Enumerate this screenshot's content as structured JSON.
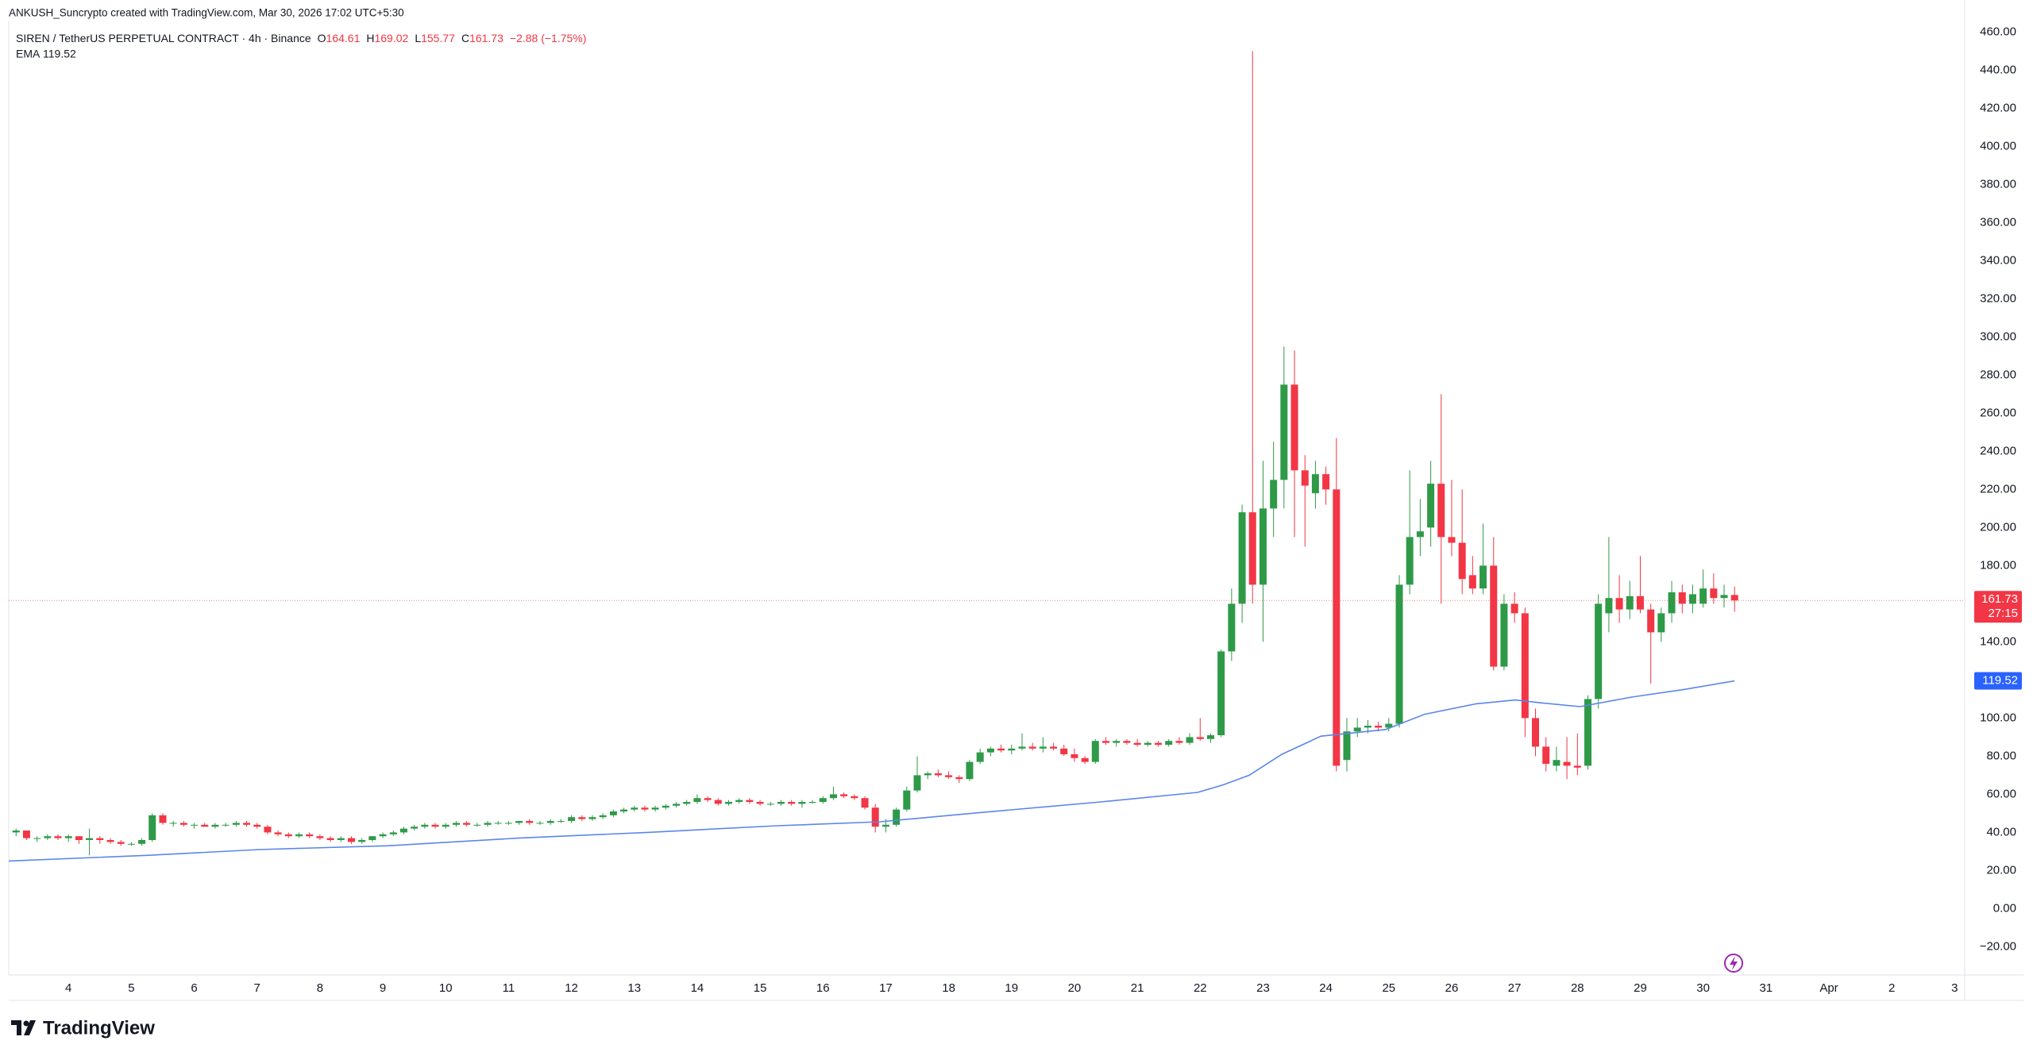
{
  "chart_data": {
    "type": "candlestick",
    "header": "ANKUSH_Suncrypto created with TradingView.com, Mar 30, 2026 17:02 UTC+5:30",
    "symbol": "SIREN / TetherUS PERPETUAL CONTRACT · 4h · Binance",
    "legend_keys": [
      "O",
      "H",
      "L",
      "C"
    ],
    "change": "−2.88 (−1.75%)",
    "countdown": "27:15",
    "logo_text": "TradingView",
    "up_color": "#2e9a48",
    "down_color": "#f23645",
    "grid": false,
    "xlim": [
      3.05,
      34.16
    ],
    "ylim": [
      -34,
      466
    ],
    "xticks": [
      4,
      5,
      6,
      7,
      8,
      9,
      10,
      11,
      12,
      13,
      14,
      15,
      16,
      17,
      18,
      19,
      20,
      21,
      22,
      23,
      24,
      25,
      26,
      27,
      28,
      29,
      30,
      31,
      {
        "value": 32,
        "label": "Apr"
      },
      {
        "value": 33,
        "label": "2"
      },
      {
        "value": 34,
        "label": "3"
      }
    ],
    "yticks": [
      {
        "value": -20,
        "label": "−20.00"
      },
      {
        "value": 0,
        "label": "0.00"
      },
      {
        "value": 20,
        "label": "20.00"
      },
      {
        "value": 40,
        "label": "40.00"
      },
      {
        "value": 60,
        "label": "60.00"
      },
      {
        "value": 80,
        "label": "80.00"
      },
      {
        "value": 100,
        "label": "100.00"
      },
      {
        "value": 120,
        "label": "120.00"
      },
      {
        "value": 140,
        "label": "140.00"
      },
      {
        "value": 160,
        "label": "160.00"
      },
      {
        "value": 180,
        "label": "180.00"
      },
      {
        "value": 200,
        "label": "200.00"
      },
      {
        "value": 220,
        "label": "220.00"
      },
      {
        "value": 240,
        "label": "240.00"
      },
      {
        "value": 260,
        "label": "260.00"
      },
      {
        "value": 280,
        "label": "280.00"
      },
      {
        "value": 300,
        "label": "300.00"
      },
      {
        "value": 320,
        "label": "320.00"
      },
      {
        "value": 340,
        "label": "340.00"
      },
      {
        "value": 360,
        "label": "360.00"
      },
      {
        "value": 380,
        "label": "380.00"
      },
      {
        "value": 400,
        "label": "400.00"
      },
      {
        "value": 420,
        "label": "420.00"
      },
      {
        "value": 440,
        "label": "440.00"
      },
      {
        "value": 460,
        "label": "460.00"
      }
    ],
    "x": [
      3.167,
      3.333,
      3.5,
      3.667,
      3.833,
      4,
      4.167,
      4.333,
      4.5,
      4.667,
      4.833,
      5,
      5.167,
      5.333,
      5.5,
      5.667,
      5.833,
      6,
      6.167,
      6.333,
      6.5,
      6.667,
      6.833,
      7,
      7.167,
      7.333,
      7.5,
      7.667,
      7.833,
      8,
      8.167,
      8.333,
      8.5,
      8.667,
      8.833,
      9,
      9.167,
      9.333,
      9.5,
      9.667,
      9.833,
      10,
      10.167,
      10.333,
      10.5,
      10.667,
      10.833,
      11,
      11.167,
      11.333,
      11.5,
      11.667,
      11.833,
      12,
      12.167,
      12.333,
      12.5,
      12.667,
      12.833,
      13,
      13.167,
      13.333,
      13.5,
      13.667,
      13.833,
      14,
      14.167,
      14.333,
      14.5,
      14.667,
      14.833,
      15,
      15.167,
      15.333,
      15.5,
      15.667,
      15.833,
      16,
      16.167,
      16.333,
      16.5,
      16.667,
      16.833,
      17,
      17.167,
      17.333,
      17.5,
      17.667,
      17.833,
      18,
      18.167,
      18.333,
      18.5,
      18.667,
      18.833,
      19,
      19.167,
      19.333,
      19.5,
      19.667,
      19.833,
      20,
      20.167,
      20.333,
      20.5,
      20.667,
      20.833,
      21,
      21.167,
      21.333,
      21.5,
      21.667,
      21.833,
      22,
      22.167,
      22.333,
      22.5,
      22.667,
      22.833,
      23,
      23.167,
      23.333,
      23.5,
      23.667,
      23.833,
      24,
      24.167,
      24.333,
      24.5,
      24.667,
      24.833,
      25,
      25.167,
      25.333,
      25.5,
      25.667,
      25.833,
      26,
      26.167,
      26.333,
      26.5,
      26.667,
      26.833,
      27,
      27.167,
      27.333,
      27.5,
      27.667,
      27.833,
      28,
      28.167,
      28.333,
      28.5,
      28.667,
      28.833,
      29,
      29.167,
      29.333,
      29.5,
      29.667,
      29.833,
      30,
      30.167,
      30.333,
      30.5
    ],
    "open": [
      40,
      41,
      37,
      37,
      38,
      37,
      38,
      36,
      37,
      36,
      35,
      34,
      34,
      36,
      49,
      45,
      45,
      44,
      44,
      43,
      44,
      44,
      45,
      44,
      43,
      40,
      39,
      38,
      39,
      38,
      37,
      36,
      37,
      35,
      36,
      38,
      39,
      40,
      42,
      43,
      44,
      43,
      44,
      45,
      44,
      44,
      45,
      45,
      45,
      46,
      45,
      45,
      46,
      46,
      48,
      47,
      48,
      49,
      51,
      52,
      53,
      52,
      53,
      54,
      55,
      56,
      58,
      57,
      55,
      56,
      57,
      56,
      55,
      55,
      56,
      55,
      56,
      56,
      58,
      60,
      59,
      58,
      53,
      43,
      44,
      52,
      62,
      70,
      71,
      70,
      69,
      68,
      77,
      82,
      84,
      83,
      84,
      85,
      84,
      85,
      84,
      81,
      79,
      77,
      88,
      87,
      88,
      87,
      86,
      87,
      86,
      88,
      87,
      90,
      89,
      91,
      135,
      160,
      208,
      170,
      210,
      225,
      275,
      230,
      218,
      228,
      220,
      78,
      93,
      95,
      96,
      95,
      97,
      170,
      195,
      200,
      223,
      195,
      192,
      175,
      168,
      180,
      127,
      160,
      155,
      100,
      85,
      75,
      77,
      75,
      75,
      110,
      155,
      163,
      157,
      164,
      157,
      145,
      155,
      166,
      160,
      160,
      168,
      163,
      164.61
    ],
    "high": [
      42,
      41,
      38,
      39,
      39,
      39,
      38,
      42,
      38,
      37,
      36,
      35,
      37,
      50,
      50,
      46,
      46,
      45,
      45,
      45,
      45,
      46,
      46,
      45,
      44,
      41,
      40,
      40,
      40,
      39,
      38,
      38,
      38,
      37,
      38,
      40,
      41,
      43,
      44,
      45,
      45,
      45,
      46,
      46,
      45,
      46,
      46,
      46,
      46,
      47,
      46,
      47,
      47,
      49,
      49,
      49,
      50,
      52,
      53,
      54,
      54,
      54,
      55,
      56,
      57,
      60,
      59,
      58,
      57,
      58,
      58,
      57,
      56,
      57,
      57,
      57,
      57,
      59,
      64,
      61,
      60,
      59,
      55,
      47,
      53,
      64,
      80,
      72,
      73,
      72,
      70,
      78,
      84,
      85,
      86,
      86,
      92,
      87,
      90,
      87,
      86,
      84,
      80,
      89,
      90,
      89,
      89,
      89,
      88,
      88,
      89,
      90,
      92,
      100,
      92,
      136,
      168,
      212,
      450,
      235,
      245,
      295,
      293,
      238,
      235,
      232,
      247,
      100,
      100,
      99,
      98,
      100,
      175,
      230,
      215,
      235,
      270,
      225,
      220,
      185,
      202,
      195,
      165,
      166,
      158,
      105,
      90,
      85,
      90,
      92,
      112,
      165,
      195,
      175,
      172,
      185,
      160,
      158,
      172,
      170,
      170,
      178,
      176,
      170,
      169.02
    ],
    "low": [
      38,
      36,
      35,
      36,
      36,
      35,
      34,
      28,
      34,
      34,
      33,
      33,
      33,
      35,
      44,
      43,
      43,
      42,
      43,
      42,
      43,
      43,
      43,
      42,
      39,
      38,
      37,
      37,
      37,
      36,
      35,
      35,
      34,
      34,
      35,
      37,
      38,
      39,
      41,
      42,
      42,
      42,
      43,
      43,
      43,
      43,
      44,
      44,
      44,
      44,
      44,
      44,
      45,
      45,
      46,
      46,
      47,
      48,
      50,
      51,
      51,
      51,
      52,
      53,
      54,
      55,
      56,
      54,
      54,
      55,
      55,
      54,
      54,
      54,
      54,
      53,
      55,
      55,
      57,
      58,
      57,
      52,
      40,
      40,
      43,
      51,
      61,
      68,
      69,
      68,
      66,
      67,
      76,
      80,
      82,
      81,
      83,
      83,
      82,
      83,
      80,
      77,
      76,
      76,
      86,
      85,
      86,
      85,
      85,
      85,
      85,
      86,
      86,
      88,
      87,
      90,
      130,
      150,
      160,
      140,
      195,
      210,
      195,
      190,
      210,
      212,
      72,
      72,
      90,
      92,
      93,
      93,
      95,
      165,
      185,
      190,
      160,
      185,
      165,
      165,
      165,
      125,
      125,
      150,
      90,
      80,
      72,
      72,
      68,
      70,
      73,
      105,
      145,
      150,
      152,
      155,
      118,
      140,
      150,
      155,
      155,
      158,
      160,
      158,
      155.77
    ],
    "close": [
      41,
      37,
      37,
      38,
      37,
      38,
      36,
      37,
      36,
      35,
      34,
      34,
      36,
      49,
      45,
      45,
      44,
      44,
      43,
      44,
      44,
      45,
      44,
      43,
      40,
      39,
      38,
      39,
      38,
      37,
      36,
      37,
      35,
      36,
      38,
      39,
      40,
      42,
      43,
      44,
      43,
      44,
      45,
      44,
      44,
      45,
      45,
      45,
      46,
      45,
      45,
      46,
      46,
      48,
      47,
      48,
      49,
      51,
      52,
      53,
      52,
      53,
      54,
      55,
      56,
      58,
      57,
      55,
      56,
      57,
      56,
      55,
      55,
      56,
      55,
      56,
      56,
      58,
      60,
      59,
      58,
      53,
      43,
      44,
      52,
      62,
      70,
      71,
      70,
      69,
      68,
      77,
      82,
      84,
      83,
      84,
      85,
      84,
      85,
      84,
      81,
      79,
      77,
      88,
      87,
      88,
      87,
      86,
      87,
      86,
      88,
      87,
      90,
      89,
      91,
      135,
      160,
      208,
      170,
      210,
      225,
      275,
      230,
      222,
      228,
      220,
      75,
      93,
      95,
      96,
      95,
      97,
      170,
      195,
      198,
      223,
      195,
      192,
      173,
      168,
      180,
      127,
      160,
      155,
      100,
      85,
      76,
      78,
      75,
      74,
      110,
      160,
      163,
      157,
      164,
      157,
      145,
      155,
      166,
      160,
      165,
      168,
      163,
      164.61,
      161.73
    ],
    "ema": {
      "name": "EMA",
      "color": "#5a86ea",
      "x": [
        3.05,
        5.28,
        7.03,
        9.09,
        11.15,
        13.21,
        15.27,
        16.91,
        18.36,
        20.42,
        21.96,
        22.37,
        22.78,
        23.3,
        23.92,
        24.95,
        25.57,
        26.39,
        27.01,
        27.42,
        28.04,
        28.86,
        29.69,
        30.5
      ],
      "values": [
        25,
        28,
        31,
        33,
        37,
        40,
        43.5,
        45.6,
        50,
        56,
        61,
        65,
        70,
        81,
        90.5,
        94,
        102,
        107.5,
        109.5,
        108,
        106,
        111,
        115,
        119.52
      ]
    }
  }
}
